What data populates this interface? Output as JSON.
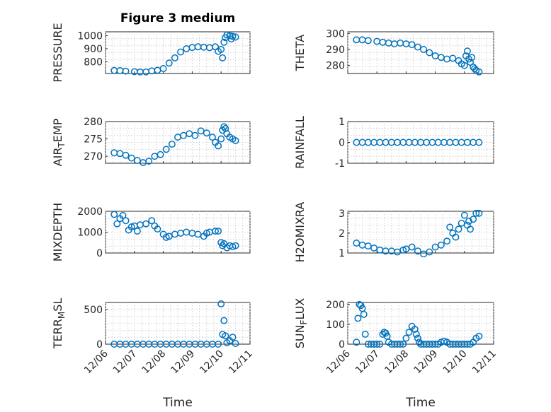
{
  "figure": {
    "title": "Figure 3 medium",
    "time_label": "Time"
  },
  "colors": {
    "marker": "#0072BD",
    "axes": "#262626",
    "grid": "#c8c8c8"
  },
  "chart_data": [
    {
      "type": "scatter",
      "key": "pressure",
      "title": "Figure 3 medium",
      "ylabel": "PRESSURE",
      "ylim": [
        710,
        1030
      ],
      "yticks": [
        800,
        900,
        1000
      ],
      "ytick_labels": [
        "800",
        "900",
        "1000"
      ],
      "xlim": [
        "2012-12-06",
        "2012-12-11"
      ],
      "xticks": [
        "12/06",
        "12/07",
        "12/08",
        "12/09",
        "12/10",
        "12/11"
      ],
      "xlabel": "",
      "grid": true,
      "show_xticks": false,
      "x": [
        0.3,
        0.5,
        0.7,
        1.0,
        1.2,
        1.4,
        1.6,
        1.8,
        2.0,
        2.2,
        2.4,
        2.6,
        2.8,
        3.0,
        3.2,
        3.4,
        3.6,
        3.8,
        3.9,
        4.0,
        4.05,
        4.1,
        4.15,
        4.2,
        4.3,
        4.35,
        4.4,
        4.5
      ],
      "y": [
        733,
        732,
        728,
        724,
        722,
        722,
        730,
        735,
        748,
        790,
        830,
        875,
        900,
        910,
        915,
        912,
        908,
        915,
        880,
        895,
        830,
        950,
        985,
        1005,
        1000,
        975,
        995,
        990
      ]
    },
    {
      "type": "scatter",
      "key": "theta",
      "ylabel": "THETA",
      "ylim": [
        275,
        301
      ],
      "yticks": [
        280,
        290,
        300
      ],
      "ytick_labels": [
        "280",
        "290",
        "300"
      ],
      "xlim": [
        "2012-12-06",
        "2012-12-11"
      ],
      "xticks": [
        "12/06",
        "12/07",
        "12/08",
        "12/09",
        "12/10",
        "12/11"
      ],
      "xlabel": "",
      "grid": true,
      "show_xticks": false,
      "x": [
        0.3,
        0.5,
        0.7,
        1.0,
        1.2,
        1.4,
        1.6,
        1.8,
        2.0,
        2.2,
        2.4,
        2.6,
        2.8,
        3.0,
        3.2,
        3.4,
        3.6,
        3.8,
        3.9,
        4.0,
        4.05,
        4.1,
        4.15,
        4.2,
        4.25,
        4.3,
        4.35,
        4.4,
        4.5
      ],
      "y": [
        296,
        296,
        295.5,
        295,
        294.5,
        294,
        293.5,
        294,
        293.5,
        293,
        291.5,
        290,
        288,
        286,
        285,
        284,
        284.5,
        283,
        281,
        280,
        286,
        289,
        284,
        282,
        285,
        279,
        278,
        277,
        276
      ]
    },
    {
      "type": "scatter",
      "key": "air_temp",
      "ylabel": "AIR_TEMP",
      "ylim": [
        268,
        280
      ],
      "yticks": [
        270,
        275,
        280
      ],
      "ytick_labels": [
        "270",
        "275",
        "280"
      ],
      "xlim": [
        "2012-12-06",
        "2012-12-11"
      ],
      "xticks": [
        "12/06",
        "12/07",
        "12/08",
        "12/09",
        "12/10",
        "12/11"
      ],
      "xlabel": "",
      "grid": true,
      "show_xticks": false,
      "x": [
        0.3,
        0.5,
        0.7,
        0.9,
        1.1,
        1.3,
        1.5,
        1.7,
        1.9,
        2.1,
        2.3,
        2.5,
        2.7,
        2.9,
        3.1,
        3.3,
        3.5,
        3.7,
        3.8,
        3.9,
        4.0,
        4.05,
        4.1,
        4.15,
        4.2,
        4.3,
        4.4,
        4.5
      ],
      "y": [
        271,
        270.8,
        270.3,
        269.5,
        268.8,
        268.2,
        268.6,
        270,
        270.5,
        272,
        273.5,
        275.5,
        276,
        276.5,
        276,
        277.3,
        276.7,
        275.5,
        274,
        273,
        275,
        277.5,
        278.5,
        278,
        276.5,
        275.5,
        275,
        274.5
      ]
    },
    {
      "type": "scatter",
      "key": "rainfall",
      "ylabel": "RAINFALL",
      "ylim": [
        -1,
        1
      ],
      "yticks": [
        -1,
        0,
        1
      ],
      "ytick_labels": [
        "-1",
        "0",
        "1"
      ],
      "xlim": [
        "2012-12-06",
        "2012-12-11"
      ],
      "xticks": [
        "12/06",
        "12/07",
        "12/08",
        "12/09",
        "12/10",
        "12/11"
      ],
      "xlabel": "",
      "grid": true,
      "show_xticks": false,
      "x": [
        0.3,
        0.5,
        0.7,
        0.9,
        1.1,
        1.3,
        1.5,
        1.7,
        1.9,
        2.1,
        2.3,
        2.5,
        2.7,
        2.9,
        3.1,
        3.3,
        3.5,
        3.7,
        3.9,
        4.1,
        4.3,
        4.5
      ],
      "y": [
        0,
        0,
        0,
        0,
        0,
        0,
        0,
        0,
        0,
        0,
        0,
        0,
        0,
        0,
        0,
        0,
        0,
        0,
        0,
        0,
        0,
        0
      ]
    },
    {
      "type": "scatter",
      "key": "mixdepth",
      "ylabel": "MIXDEPTH",
      "ylim": [
        0,
        2000
      ],
      "yticks": [
        0,
        1000,
        2000
      ],
      "ytick_labels": [
        "0",
        "1000",
        "2000"
      ],
      "xlim": [
        "2012-12-06",
        "2012-12-11"
      ],
      "xticks": [
        "12/06",
        "12/07",
        "12/08",
        "12/09",
        "12/10",
        "12/11"
      ],
      "xlabel": "",
      "grid": true,
      "show_xticks": false,
      "x": [
        0.3,
        0.4,
        0.5,
        0.6,
        0.7,
        0.8,
        0.9,
        1.0,
        1.1,
        1.2,
        1.4,
        1.6,
        1.7,
        1.8,
        2.0,
        2.1,
        2.2,
        2.4,
        2.6,
        2.8,
        3.0,
        3.2,
        3.4,
        3.5,
        3.6,
        3.8,
        3.9,
        4.0,
        4.05,
        4.1,
        4.2,
        4.3,
        4.4,
        4.5
      ],
      "y": [
        1850,
        1400,
        1650,
        1800,
        1550,
        1100,
        1250,
        1300,
        1050,
        1350,
        1400,
        1550,
        1300,
        1150,
        900,
        750,
        800,
        900,
        950,
        1000,
        950,
        900,
        800,
        950,
        1000,
        1050,
        1050,
        500,
        350,
        450,
        250,
        350,
        300,
        350
      ]
    },
    {
      "type": "scatter",
      "key": "h2omixra",
      "ylabel": "H2OMIXRA",
      "ylim": [
        1,
        3.1
      ],
      "yticks": [
        1,
        2,
        3
      ],
      "ytick_labels": [
        "1",
        "2",
        "3"
      ],
      "xlim": [
        "2012-12-06",
        "2012-12-11"
      ],
      "xticks": [
        "12/06",
        "12/07",
        "12/08",
        "12/09",
        "12/10",
        "12/11"
      ],
      "xlabel": "",
      "grid": true,
      "show_xticks": false,
      "x": [
        0.3,
        0.5,
        0.7,
        0.9,
        1.1,
        1.3,
        1.5,
        1.7,
        1.9,
        2.0,
        2.2,
        2.4,
        2.6,
        2.8,
        3.0,
        3.2,
        3.4,
        3.5,
        3.6,
        3.7,
        3.8,
        3.9,
        4.0,
        4.1,
        4.15,
        4.2,
        4.3,
        4.4,
        4.5
      ],
      "y": [
        1.5,
        1.4,
        1.35,
        1.25,
        1.15,
        1.1,
        1.1,
        1.05,
        1.15,
        1.2,
        1.3,
        1.1,
        0.95,
        1.05,
        1.3,
        1.4,
        1.6,
        2.3,
        2.0,
        1.8,
        2.2,
        2.5,
        2.9,
        2.4,
        2.6,
        2.2,
        2.7,
        3.0,
        3.0
      ]
    },
    {
      "type": "scatter",
      "key": "terr_msl",
      "ylabel": "TERR_MSL",
      "ylim": [
        0,
        600
      ],
      "yticks": [
        0,
        500
      ],
      "ytick_labels": [
        "0",
        "500"
      ],
      "xlim": [
        "2012-12-06",
        "2012-12-11"
      ],
      "xticks": [
        "12/06",
        "12/07",
        "12/08",
        "12/09",
        "12/10",
        "12/11"
      ],
      "xlabel": "Time",
      "grid": true,
      "show_xticks": true,
      "x": [
        0.3,
        0.5,
        0.7,
        0.9,
        1.1,
        1.3,
        1.5,
        1.7,
        1.9,
        2.1,
        2.3,
        2.5,
        2.7,
        2.9,
        3.1,
        3.3,
        3.5,
        3.7,
        3.9,
        4.0,
        4.05,
        4.1,
        4.15,
        4.2,
        4.3,
        4.4,
        4.5
      ],
      "y": [
        0,
        0,
        0,
        0,
        0,
        0,
        0,
        0,
        0,
        0,
        0,
        0,
        0,
        0,
        0,
        0,
        0,
        0,
        0,
        580,
        140,
        340,
        120,
        20,
        50,
        100,
        10
      ]
    },
    {
      "type": "scatter",
      "key": "sun_flux",
      "ylabel": "SUN_FLUX",
      "ylim": [
        0,
        210
      ],
      "yticks": [
        0,
        100,
        200
      ],
      "ytick_labels": [
        "0",
        "100",
        "200"
      ],
      "xlim": [
        "2012-12-06",
        "2012-12-11"
      ],
      "xticks": [
        "12/06",
        "12/07",
        "12/08",
        "12/09",
        "12/10",
        "12/11"
      ],
      "xlabel": "Time",
      "grid": true,
      "show_xticks": true,
      "x": [
        0.3,
        0.35,
        0.4,
        0.45,
        0.5,
        0.55,
        0.6,
        0.7,
        0.8,
        0.9,
        1.0,
        1.1,
        1.2,
        1.25,
        1.3,
        1.35,
        1.4,
        1.5,
        1.6,
        1.7,
        1.8,
        1.9,
        2.0,
        2.1,
        2.2,
        2.3,
        2.35,
        2.4,
        2.45,
        2.5,
        2.6,
        2.7,
        2.8,
        2.9,
        3.0,
        3.1,
        3.2,
        3.3,
        3.4,
        3.5,
        3.6,
        3.7,
        3.8,
        3.9,
        4.0,
        4.1,
        4.2,
        4.3,
        4.4,
        4.5
      ],
      "y": [
        10,
        130,
        200,
        195,
        180,
        150,
        50,
        0,
        0,
        0,
        0,
        0,
        50,
        60,
        55,
        40,
        10,
        0,
        0,
        0,
        0,
        0,
        30,
        60,
        90,
        75,
        50,
        30,
        10,
        0,
        0,
        0,
        0,
        0,
        0,
        0,
        10,
        15,
        10,
        0,
        0,
        0,
        0,
        0,
        0,
        0,
        0,
        10,
        30,
        40
      ]
    }
  ]
}
